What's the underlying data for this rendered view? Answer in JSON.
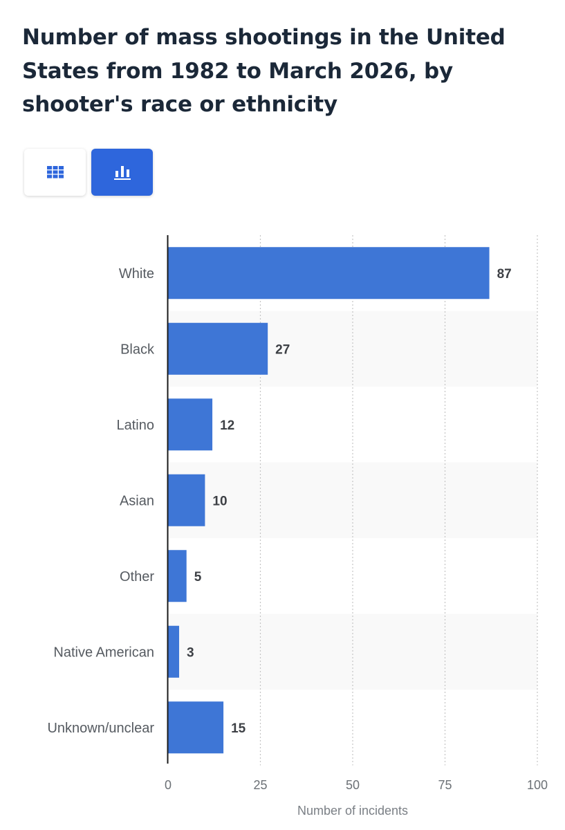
{
  "title": "Number of mass shootings in the United States from 1982 to March 2026, by shooter's race or ethnicity",
  "view_toggle": {
    "table_icon": "table-grid-icon",
    "chart_icon": "bar-chart-icon",
    "active": "chart",
    "active_color": "#2e66dc",
    "icon_color": "#2e66dc"
  },
  "chart_data": {
    "type": "bar",
    "orientation": "horizontal",
    "categories": [
      "White",
      "Black",
      "Latino",
      "Asian",
      "Other",
      "Native American",
      "Unknown/unclear"
    ],
    "values": [
      87,
      27,
      12,
      10,
      5,
      3,
      15
    ],
    "xlabel": "Number of incidents",
    "ylabel": "",
    "xlim": [
      0,
      100
    ],
    "xticks": [
      "0",
      "25",
      "50",
      "75",
      "100"
    ],
    "grid": "vertical-dotted",
    "bar_color": "#3e76d6",
    "alt_row_color": "#f9f9f9",
    "data_labels": true
  }
}
